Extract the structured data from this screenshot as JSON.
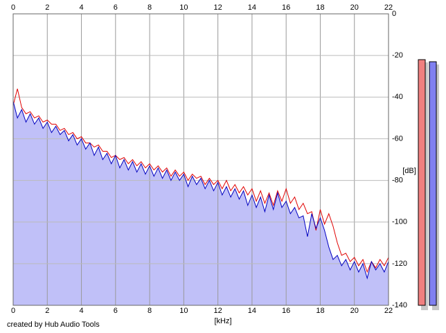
{
  "chart_data": {
    "type": "spectrum",
    "x_label": "[kHz]",
    "y_label": "[dB]",
    "footer": "created by Hub Audio Tools",
    "xlim": [
      0,
      22
    ],
    "xticks": [
      0,
      2,
      4,
      6,
      8,
      10,
      12,
      14,
      16,
      18,
      20,
      22
    ],
    "ylim": [
      -140,
      0
    ],
    "yticks": [
      0,
      -20,
      -40,
      -60,
      -80,
      -100,
      -120,
      -140
    ],
    "grid": true,
    "fill_color": "#c0c0f8",
    "x": [
      0,
      0.25,
      0.5,
      0.75,
      1,
      1.25,
      1.5,
      1.75,
      2,
      2.25,
      2.5,
      2.75,
      3,
      3.25,
      3.5,
      3.75,
      4,
      4.25,
      4.5,
      4.75,
      5,
      5.25,
      5.5,
      5.75,
      6,
      6.25,
      6.5,
      6.75,
      7,
      7.25,
      7.5,
      7.75,
      8,
      8.25,
      8.5,
      8.75,
      9,
      9.25,
      9.5,
      9.75,
      10,
      10.25,
      10.5,
      10.75,
      11,
      11.25,
      11.5,
      11.75,
      12,
      12.25,
      12.5,
      12.75,
      13,
      13.25,
      13.5,
      13.75,
      14,
      14.25,
      14.5,
      14.75,
      15,
      15.25,
      15.5,
      15.75,
      16,
      16.25,
      16.5,
      16.75,
      17,
      17.25,
      17.5,
      17.75,
      18,
      18.25,
      18.5,
      18.75,
      19,
      19.25,
      19.5,
      19.75,
      20,
      20.25,
      20.5,
      20.75,
      21,
      21.25,
      21.5,
      21.75,
      22
    ],
    "series": [
      {
        "color": "#e00000",
        "values": [
          -44,
          -36,
          -45,
          -48,
          -47,
          -50,
          -49,
          -52,
          -51,
          -53,
          -53,
          -56,
          -55,
          -58,
          -57,
          -60,
          -59,
          -62,
          -62,
          -64,
          -63,
          -66,
          -66,
          -69,
          -68,
          -70,
          -69,
          -72,
          -70,
          -73,
          -71,
          -74,
          -72,
          -75,
          -73,
          -76,
          -74,
          -78,
          -75,
          -78,
          -76,
          -80,
          -77,
          -79,
          -78,
          -82,
          -79,
          -82,
          -80,
          -84,
          -80,
          -85,
          -82,
          -86,
          -83,
          -87,
          -84,
          -90,
          -85,
          -91,
          -86,
          -92,
          -85,
          -90,
          -84,
          -91,
          -88,
          -94,
          -91,
          -96,
          -95,
          -104,
          -94,
          -101,
          -96,
          -102,
          -110,
          -116,
          -115,
          -119,
          -117,
          -121,
          -118,
          -124,
          -119,
          -122,
          -118,
          -121,
          -117
        ]
      },
      {
        "color": "#0000c0",
        "values": [
          -42,
          -50,
          -46,
          -52,
          -48,
          -53,
          -50,
          -55,
          -52,
          -57,
          -54,
          -58,
          -56,
          -61,
          -58,
          -63,
          -60,
          -65,
          -62,
          -68,
          -64,
          -70,
          -67,
          -72,
          -68,
          -74,
          -70,
          -75,
          -71,
          -76,
          -72,
          -77,
          -73,
          -78,
          -74,
          -79,
          -75,
          -80,
          -76,
          -80,
          -77,
          -83,
          -78,
          -82,
          -79,
          -84,
          -80,
          -85,
          -81,
          -87,
          -83,
          -88,
          -84,
          -89,
          -85,
          -92,
          -87,
          -93,
          -88,
          -95,
          -87,
          -94,
          -86,
          -93,
          -90,
          -96,
          -93,
          -98,
          -97,
          -107,
          -96,
          -103,
          -98,
          -104,
          -112,
          -118,
          -116,
          -121,
          -118,
          -123,
          -119,
          -124,
          -120,
          -127,
          -119,
          -123,
          -120,
          -124,
          -119
        ]
      }
    ],
    "meters": [
      {
        "color": "#f08080",
        "value": -22
      },
      {
        "color": "#8080f0",
        "value": -23
      }
    ]
  }
}
